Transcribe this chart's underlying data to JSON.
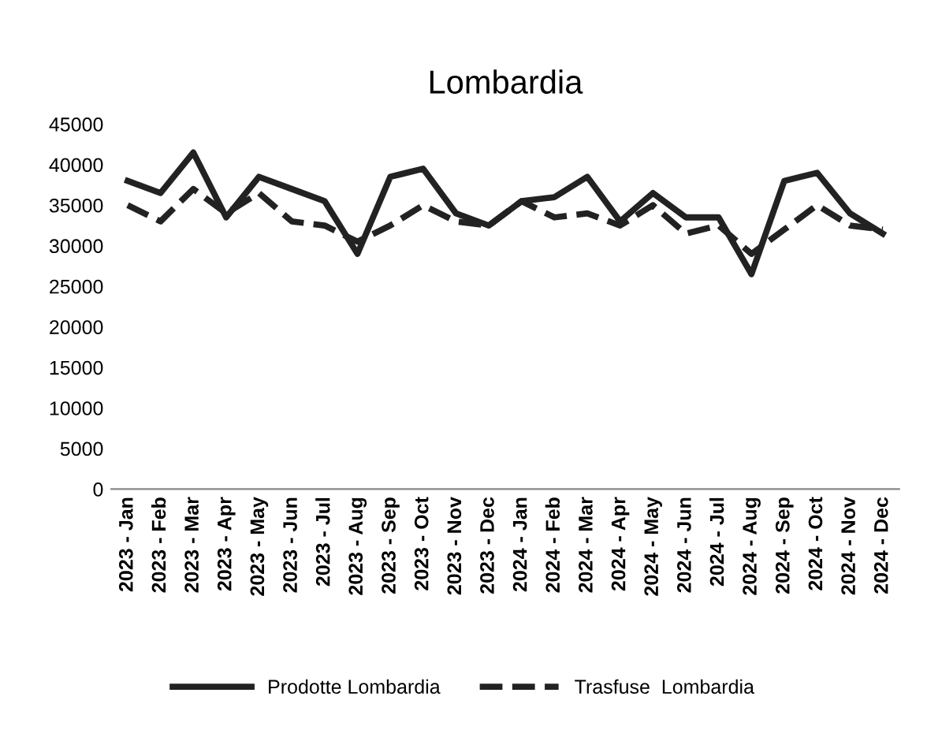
{
  "chart_data": {
    "type": "line",
    "title": "Lombardia",
    "categories": [
      "2023 - Jan",
      "2023 - Feb",
      "2023 - Mar",
      "2023 - Apr",
      "2023 - May",
      "2023 - Jun",
      "2023 - Jul",
      "2023 - Aug",
      "2023 - Sep",
      "2023 - Oct",
      "2023 - Nov",
      "2023 - Dec",
      "2024 - Jan",
      "2024 - Feb",
      "2024 - Mar",
      "2024 - Apr",
      "2024 - May",
      "2024 - Jun",
      "2024 - Jul",
      "2024 - Aug",
      "2024 - Sep",
      "2024 - Oct",
      "2024 - Nov",
      "2024 - Dec"
    ],
    "series": [
      {
        "name": "Prodotte Lombardia",
        "color": "#222222",
        "line_style": "solid",
        "values": [
          38000,
          36500,
          41500,
          33500,
          38500,
          37000,
          35500,
          29000,
          38500,
          39500,
          34000,
          32500,
          35500,
          36000,
          38500,
          33000,
          36500,
          33500,
          33500,
          26500,
          38000,
          39000,
          34000,
          31500
        ]
      },
      {
        "name": "Trasfuse  Lombardia",
        "color": "#222222",
        "line_style": "dashed",
        "values": [
          35000,
          33000,
          37000,
          34000,
          36500,
          33000,
          32500,
          30500,
          32500,
          35000,
          33000,
          32500,
          35500,
          33500,
          34000,
          32500,
          35000,
          31500,
          32500,
          29000,
          32000,
          35000,
          32500,
          32000
        ]
      }
    ],
    "ylim": [
      0,
      45000
    ],
    "yticks": [
      0,
      5000,
      10000,
      15000,
      20000,
      25000,
      30000,
      35000,
      40000,
      45000
    ],
    "grid": false,
    "legend": "bottom",
    "marker": "none"
  }
}
